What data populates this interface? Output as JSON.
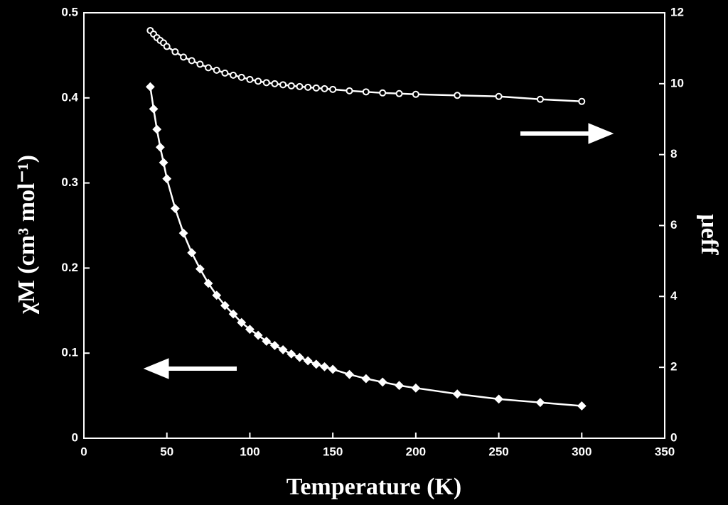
{
  "chart_data": {
    "type": "scatter",
    "x_label": "Temperature (K)",
    "y_label": "χM (cm³ mol⁻¹)",
    "y2_label": "μeff",
    "xlim": [
      0,
      350
    ],
    "xticks": [
      0,
      50,
      100,
      150,
      200,
      250,
      300,
      350
    ],
    "ylim": [
      0,
      0.5
    ],
    "yticks": [
      0,
      0.1,
      0.2,
      0.3,
      0.4,
      0.5
    ],
    "y2lim": [
      0,
      12
    ],
    "y2ticks": [
      0,
      2,
      4,
      6,
      8,
      10,
      12
    ],
    "x": [
      40,
      42,
      44,
      46,
      48,
      50,
      55,
      60,
      65,
      70,
      75,
      80,
      85,
      90,
      95,
      100,
      105,
      110,
      115,
      120,
      125,
      130,
      135,
      140,
      145,
      150,
      160,
      170,
      180,
      190,
      200,
      225,
      250,
      275,
      300
    ],
    "series": [
      {
        "name": "χM",
        "color": "#ffffff",
        "marker": "diamond",
        "axis": "y",
        "values": [
          0.413,
          0.387,
          0.363,
          0.342,
          0.324,
          0.305,
          0.27,
          0.241,
          0.218,
          0.199,
          0.182,
          0.168,
          0.156,
          0.146,
          0.136,
          0.128,
          0.121,
          0.114,
          0.109,
          0.104,
          0.099,
          0.095,
          0.091,
          0.087,
          0.084,
          0.081,
          0.075,
          0.07,
          0.066,
          0.062,
          0.059,
          0.052,
          0.046,
          0.042,
          0.038
        ]
      },
      {
        "name": "μeff",
        "color": "#ffffff",
        "marker": "circle",
        "axis": "y2",
        "values": [
          11.5,
          11.4,
          11.3,
          11.22,
          11.15,
          11.05,
          10.9,
          10.75,
          10.65,
          10.55,
          10.45,
          10.38,
          10.3,
          10.24,
          10.18,
          10.12,
          10.07,
          10.03,
          10.0,
          9.97,
          9.94,
          9.92,
          9.9,
          9.88,
          9.86,
          9.84,
          9.8,
          9.77,
          9.74,
          9.72,
          9.7,
          9.67,
          9.64,
          9.56,
          9.5
        ]
      }
    ]
  }
}
